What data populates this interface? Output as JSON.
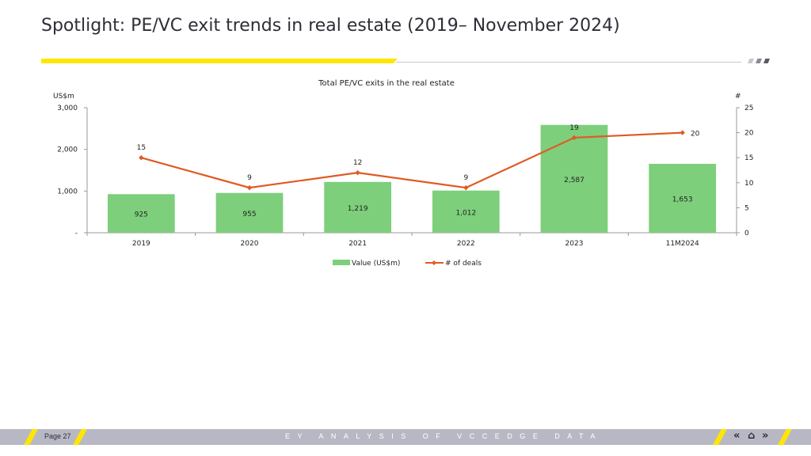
{
  "header": {
    "title": "Spotlight: PE/VC exit trends in real estate (2019– November 2024)"
  },
  "chart_data": {
    "type": "bar",
    "title": "Total PE/VC exits in the real estate",
    "categories": [
      "2019",
      "2020",
      "2021",
      "2022",
      "2023",
      "11M2024"
    ],
    "series": [
      {
        "name": "Value (US$m)",
        "type": "bar",
        "axis": "left",
        "values": [
          925,
          955,
          1219,
          1012,
          2587,
          1653
        ],
        "labels": [
          "925",
          "955",
          "1,219",
          "1,012",
          "2,587",
          "1,653"
        ],
        "color": "#7dcf7b"
      },
      {
        "name": "# of deals",
        "type": "line",
        "axis": "right",
        "values": [
          15,
          9,
          12,
          9,
          19,
          20
        ],
        "color": "#e05a24"
      }
    ],
    "ylabel_left": "US$m",
    "ylabel_right": "#",
    "ylim_left": [
      0,
      3000
    ],
    "ylim_right": [
      0,
      25
    ],
    "yticks_left": [
      0,
      1000,
      2000,
      3000
    ],
    "ytick_labels_left": [
      "-",
      "1,000",
      "2,000",
      "3,000"
    ],
    "yticks_right": [
      0,
      5,
      10,
      15,
      20,
      25
    ],
    "ytick_labels_right": [
      "0",
      "5",
      "10",
      "15",
      "20",
      "25"
    ],
    "grid": false,
    "legend_position": "bottom"
  },
  "footer": {
    "page": "Page 27",
    "center_text": "EY ANALYSIS OF VCCEDGE DATA",
    "prev_glyph": "«",
    "home_glyph": "⌂",
    "next_glyph": "»"
  },
  "colors": {
    "accent_yellow": "#ffe600",
    "footer_gray": "#b8b8c4",
    "dark": "#2e2e38"
  }
}
